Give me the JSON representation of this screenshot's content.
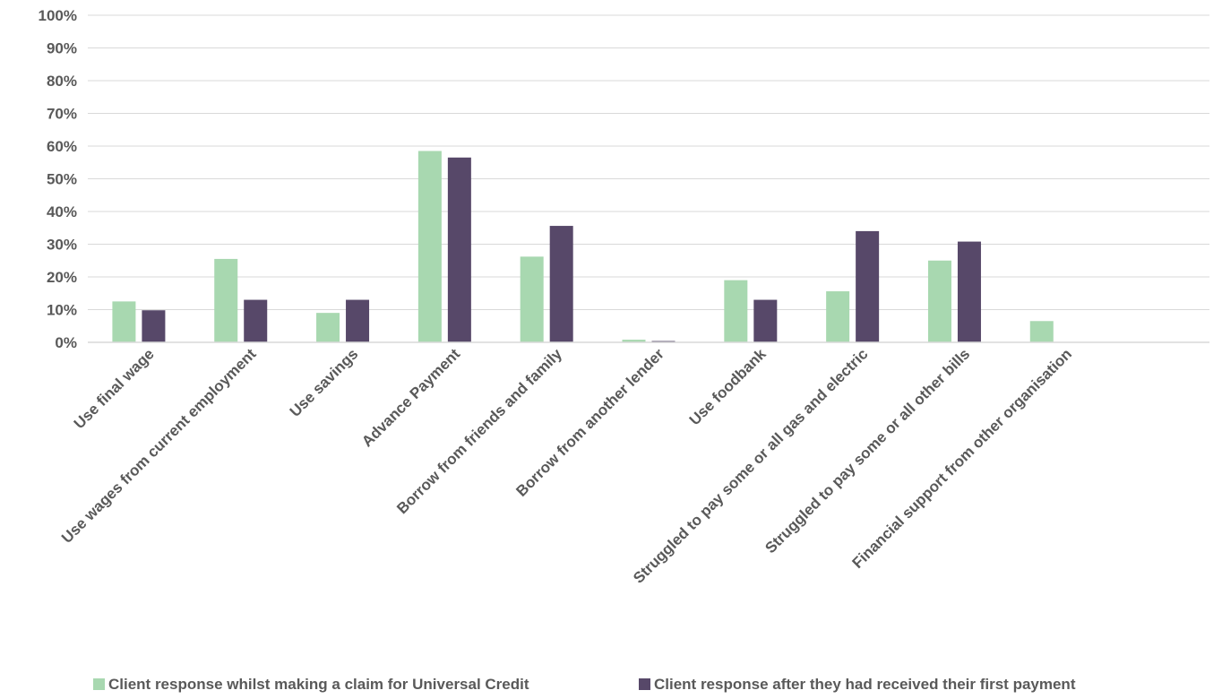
{
  "chart_data": {
    "type": "bar",
    "title": "",
    "xlabel": "",
    "ylabel": "",
    "ylim": [
      0,
      100
    ],
    "yticks": [
      "0%",
      "10%",
      "20%",
      "30%",
      "40%",
      "50%",
      "60%",
      "70%",
      "80%",
      "90%",
      "100%"
    ],
    "grid": true,
    "legend_position": "bottom",
    "categories": [
      "Use final wage",
      "Use wages from current employment",
      "Use savings",
      "Advance Payment",
      "Borrow from friends and family",
      "Borrow from another lender",
      "Use foodbank",
      "Struggled to pay some or all gas and electric",
      "Struggled to pay some or all other bills",
      "Financial support from other organisation"
    ],
    "series": [
      {
        "name": "Client response whilst making a claim for Universal Credit",
        "color": "#a8d8b0",
        "values": [
          12.5,
          25.5,
          9,
          58.5,
          26.2,
          0.8,
          19,
          15.6,
          25,
          6.5
        ]
      },
      {
        "name": "Client response after they had received their first payment",
        "color": "#574869",
        "values": [
          9.8,
          13,
          13,
          56.5,
          35.6,
          0.4,
          13,
          34,
          30.8,
          0
        ]
      }
    ]
  }
}
